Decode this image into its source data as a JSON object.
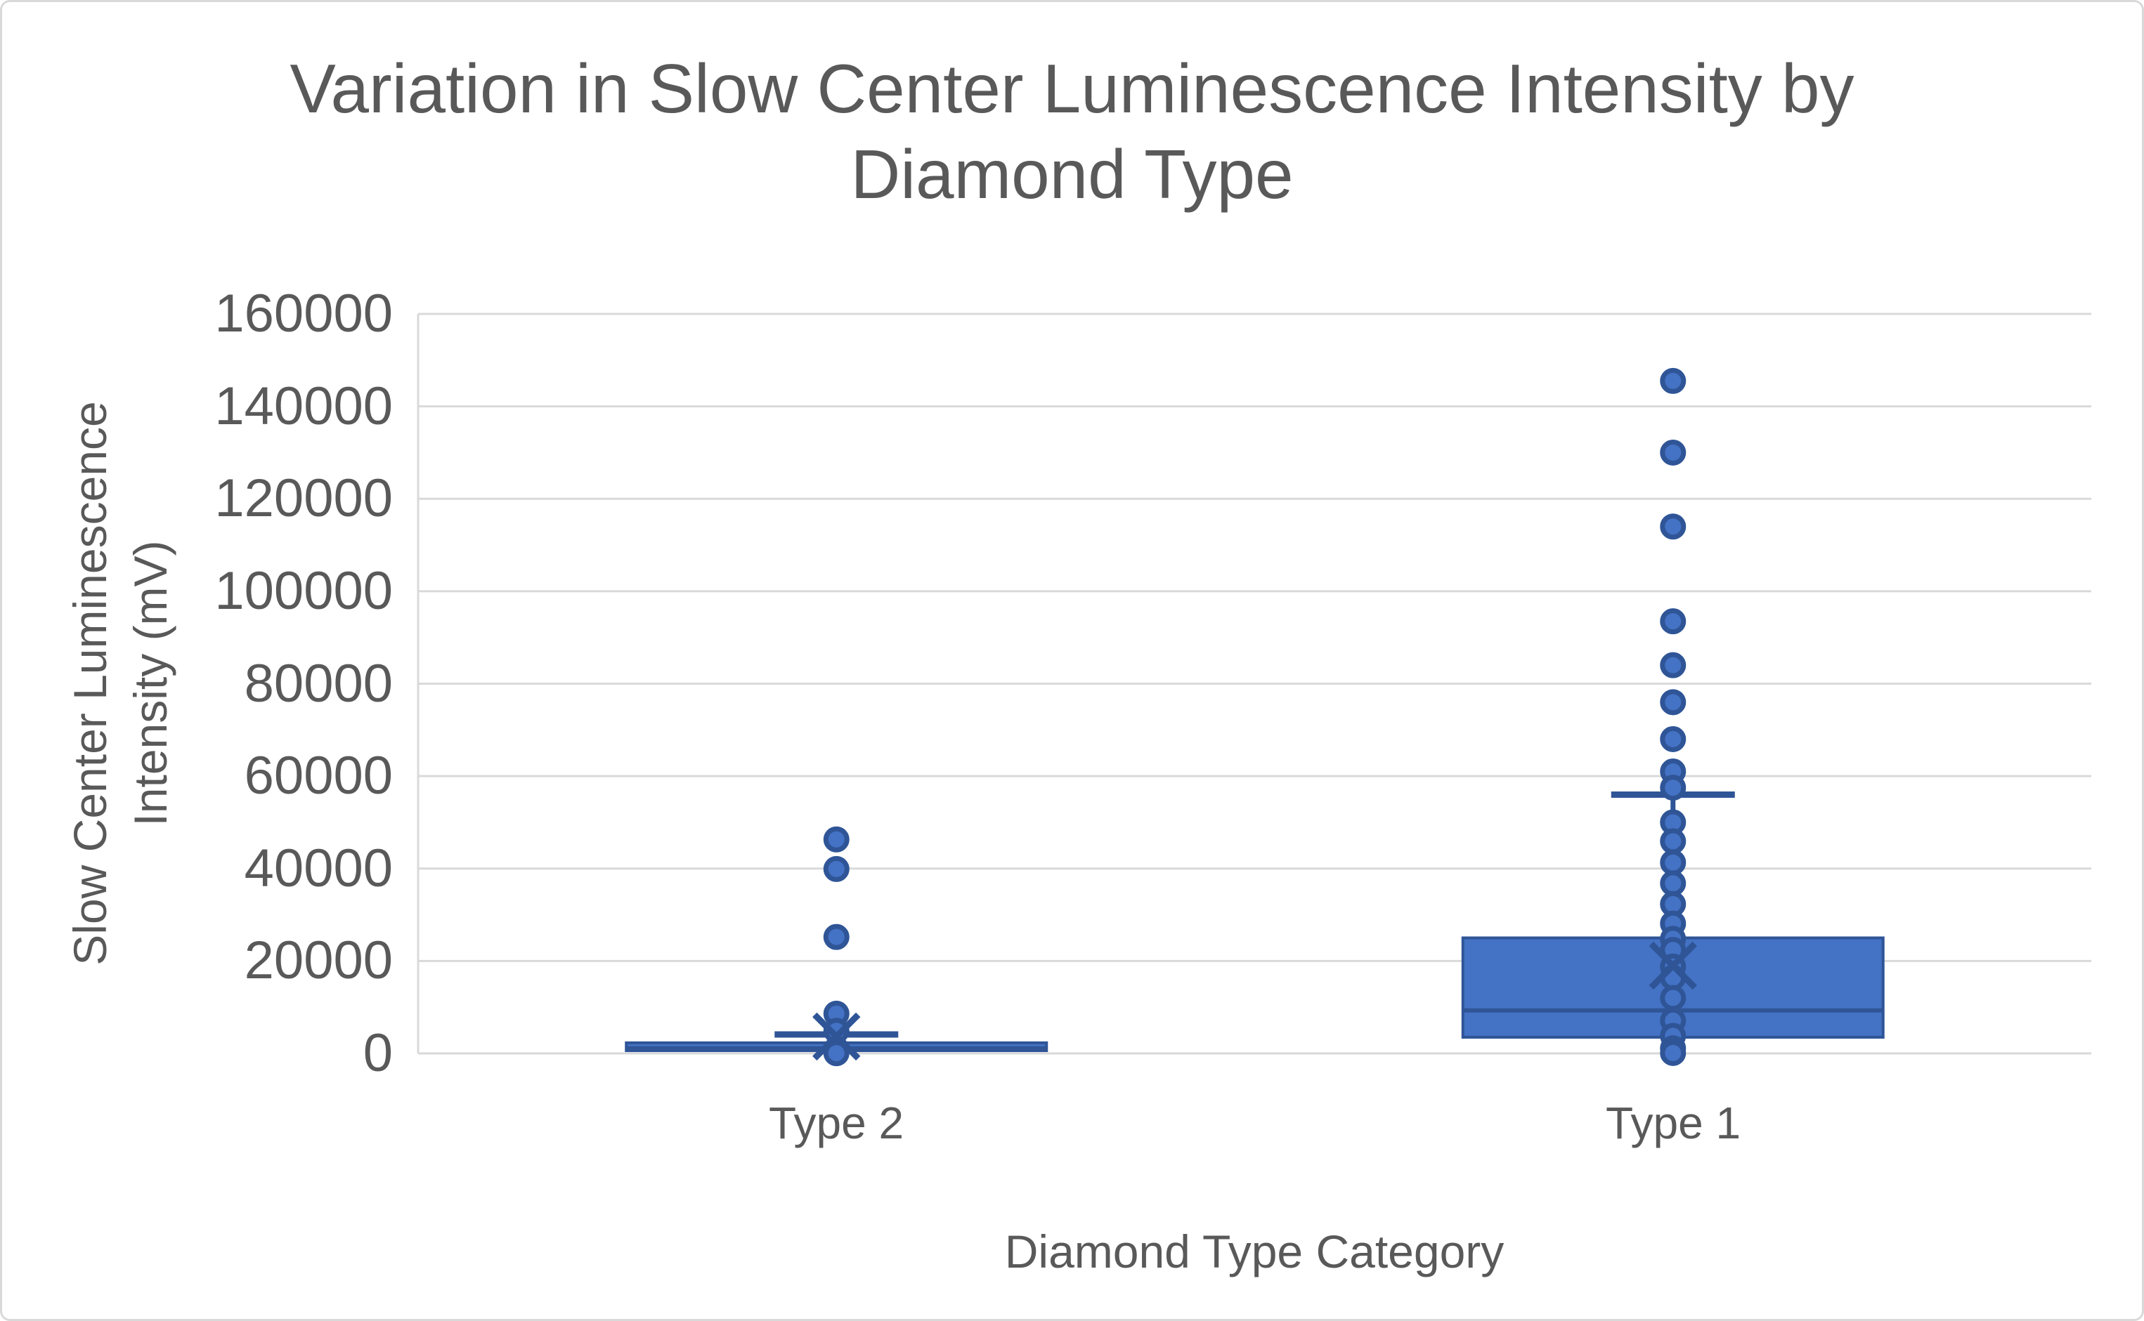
{
  "title": {
    "line1": "Variation in Slow Center Luminescence Intensity by",
    "line2": "Diamond Type"
  },
  "y_axis": {
    "title_line1": "Slow Center Luminescence",
    "title_line2": "Intensity (mV)",
    "min": 0,
    "max": 160000,
    "tick_step": 20000,
    "tick_labels": [
      "0",
      "20000",
      "40000",
      "60000",
      "80000",
      "100000",
      "120000",
      "140000",
      "160000"
    ]
  },
  "x_axis": {
    "title": "Diamond Type Category",
    "categories": [
      "Type 2",
      "Type 1"
    ]
  },
  "chart_data": {
    "type": "box",
    "title": "Variation in Slow Center Luminescence Intensity by Diamond Type",
    "xlabel": "Diamond Type Category",
    "ylabel": "Slow Center Luminescence Intensity (mV)",
    "ylim": [
      0,
      160000
    ],
    "ytick_step": 20000,
    "grid": true,
    "legend": false,
    "categories": [
      "Type 2",
      "Type 1"
    ],
    "series": [
      {
        "name": "Type 2",
        "q1": 600,
        "median": 1100,
        "q3": 2300,
        "mean": 3650,
        "whisker_high": 4100,
        "whisker_low": 0,
        "points": [
          46300,
          39900,
          25200,
          8600,
          4900,
          900,
          50
        ]
      },
      {
        "name": "Type 1",
        "q1": 3500,
        "median": 9300,
        "q3": 25000,
        "mean": 19000,
        "whisker_high": 56000,
        "whisker_low": 0,
        "points": [
          145500,
          130000,
          114000,
          93500,
          84000,
          76000,
          68000,
          61000,
          57500,
          50000,
          45900,
          41300,
          36800,
          32300,
          28100,
          24800,
          22400,
          18800,
          16400,
          12000,
          7100,
          3800,
          1100,
          100
        ]
      }
    ],
    "colors": {
      "box_fill": "#4472C4",
      "box_line": "#2F5597",
      "gridline": "#D9D9D9",
      "text": "#595959",
      "background": "#FFFFFF",
      "chart_border": "#D9D9D9"
    }
  }
}
